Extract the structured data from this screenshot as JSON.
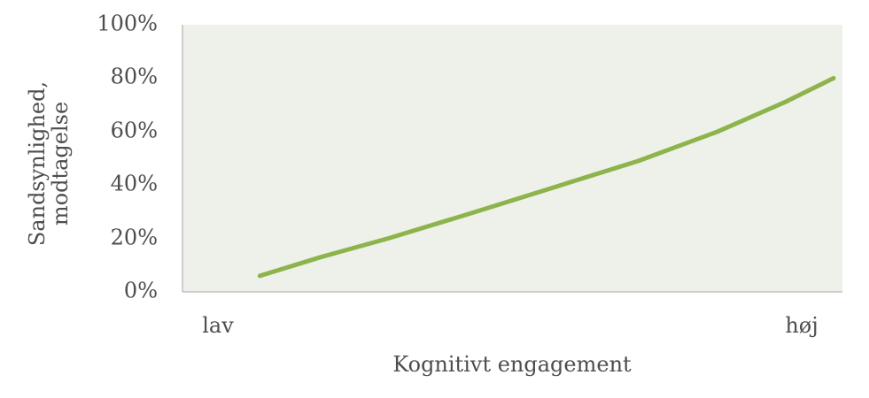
{
  "chart_data": {
    "type": "line",
    "title": "",
    "xlabel": "Kognitivt engagement",
    "ylabel_lines": [
      "Sandsynlighed,",
      "modtagelse"
    ],
    "x_tick_labels": [
      "lav",
      "høj"
    ],
    "y_tick_labels": [
      "0%",
      "20%",
      "40%",
      "60%",
      "80%",
      "100%"
    ],
    "y_ticks": [
      0,
      20,
      40,
      60,
      80,
      100
    ],
    "ylim": [
      0,
      100
    ],
    "xlim": [
      0,
      1
    ],
    "grid": false,
    "legend": "none",
    "series": [
      {
        "x": [
          0.06,
          0.16,
          0.27,
          0.4,
          0.54,
          0.68,
          0.81,
          0.92,
          1.0
        ],
        "values": [
          6,
          13,
          20,
          29,
          39,
          49,
          60,
          71,
          80
        ]
      }
    ],
    "colors": {
      "line": "#8db44c",
      "plot_background": "#eef1e9",
      "axis": "#a6a6a6",
      "text": "#4d4d4d"
    }
  }
}
